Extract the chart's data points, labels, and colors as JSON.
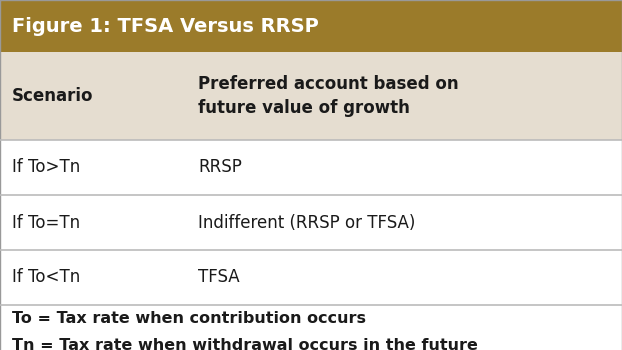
{
  "title": "Figure 1: TFSA Versus RRSP",
  "title_bg": "#9B7B2A",
  "title_color": "#FFFFFF",
  "header_bg": "#E5DDD0",
  "header_col1": "Scenario",
  "header_col2": "Preferred account based on\nfuture value of growth",
  "rows": [
    [
      "If To>Tn",
      "RRSP"
    ],
    [
      "If To=Tn",
      "Indifferent (RRSP or TFSA)"
    ],
    [
      "If To<Tn",
      "TFSA"
    ]
  ],
  "footer_lines": [
    "To = Tax rate when contribution occurs",
    "Tn = Tax rate when withdrawal occurs in the future"
  ],
  "row_bg": "#FFFFFF",
  "row_text_color": "#1A1A1A",
  "line_color": "#BBBBBB",
  "col_split": 0.295,
  "title_fontsize": 14,
  "header_fontsize": 12,
  "body_fontsize": 12,
  "footer_fontsize": 11.5
}
